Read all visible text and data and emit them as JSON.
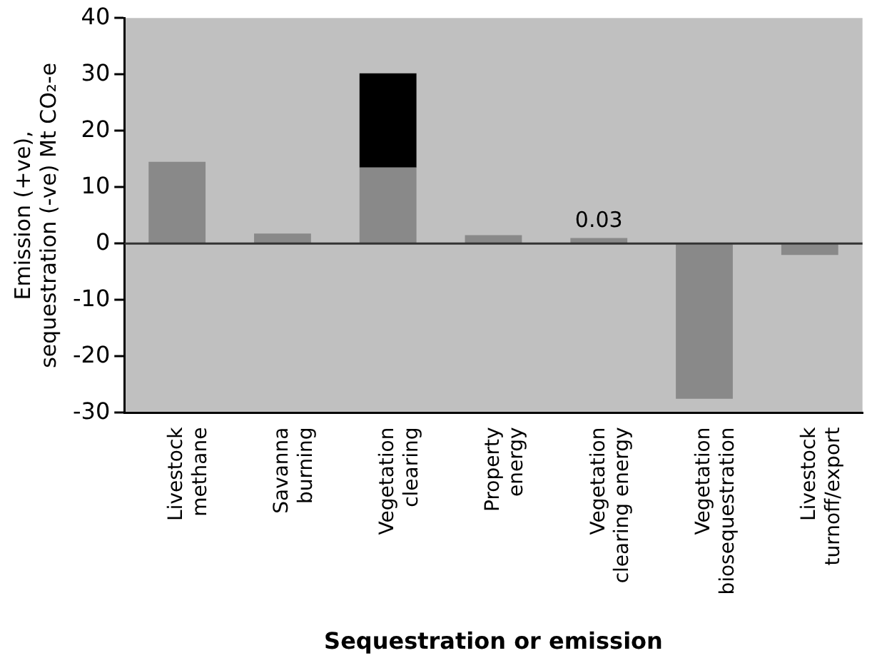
{
  "chart_data": {
    "type": "bar",
    "stacked": true,
    "xlabel": "Sequestration or emission",
    "ylabel": "Emission (+ve),\nsequestration (-ve) Mt CO₂-e",
    "categories": [
      "Livestock\nmethane",
      "Savanna\nburning",
      "Vegetation\nclearing",
      "Property\nenergy",
      "Vegetation\nclearing energy",
      "Vegetation\nbiosequestration",
      "Livestock\nturnoff/export"
    ],
    "series": [
      {
        "color": "#898989",
        "values": [
          14.5,
          1.8,
          13.5,
          1.5,
          1.0,
          -27.5,
          -2.0
        ]
      },
      {
        "color": "#000000",
        "values": [
          null,
          null,
          16.7,
          null,
          null,
          null,
          null
        ]
      }
    ],
    "ylim": [
      -30,
      40
    ],
    "yticks": [
      -30,
      -20,
      -10,
      0,
      10,
      20,
      30,
      40
    ],
    "legend": false,
    "ref_lines": [
      {
        "axis": "y",
        "value": 0,
        "color": "#333333"
      }
    ],
    "annotations": [
      {
        "text": "0.03",
        "x": "Vegetation\nclearing energy",
        "y": 1.0
      }
    ]
  }
}
